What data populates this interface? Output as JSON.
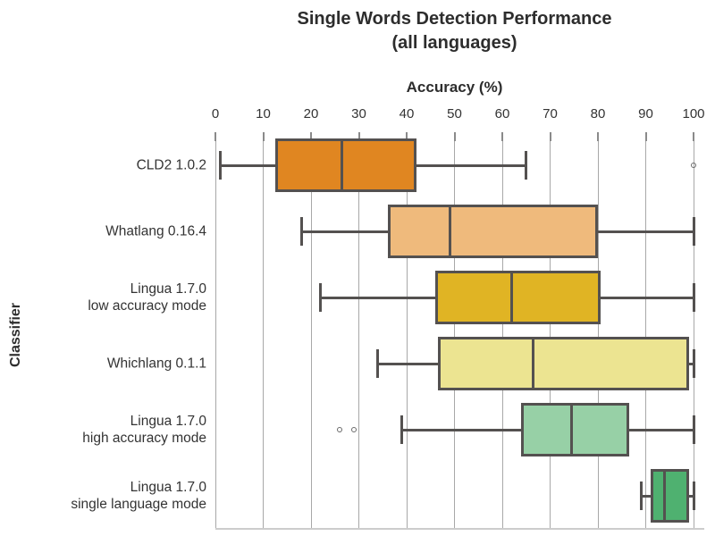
{
  "header": {
    "title_line1": "Single Words Detection Performance",
    "title_line2": "(all languages)"
  },
  "colors": {
    "box_border": "#545150",
    "gridline": "#a8a8a8",
    "text": "#2d2d2d"
  },
  "chart_data": {
    "type": "boxplot",
    "orientation": "horizontal",
    "title": "Single Words Detection Performance (all languages)",
    "xlabel": "Accuracy (%)",
    "ylabel": "Classifier",
    "xlim": [
      0,
      100
    ],
    "xticks": [
      0,
      10,
      20,
      30,
      40,
      50,
      60,
      70,
      80,
      90,
      100
    ],
    "grid": true,
    "x_axis_position": "top",
    "series": [
      {
        "name": "CLD2 1.0.2",
        "label_lines": [
          "CLD2 1.0.2"
        ],
        "color": "#E08621",
        "whisker_low": 1,
        "q1": 12.5,
        "median": 26.5,
        "q3": 42,
        "whisker_high": 65,
        "outliers": [
          100
        ]
      },
      {
        "name": "Whatlang 0.16.4",
        "label_lines": [
          "Whatlang 0.16.4"
        ],
        "color": "#EFBA7C",
        "whisker_low": 18,
        "q1": 36,
        "median": 49,
        "q3": 80,
        "whisker_high": 100,
        "outliers": []
      },
      {
        "name": "Lingua 1.7.0 low accuracy mode",
        "label_lines": [
          "Lingua 1.7.0",
          "low accuracy mode"
        ],
        "color": "#E0B424",
        "whisker_low": 22,
        "q1": 46,
        "median": 62,
        "q3": 80.5,
        "whisker_high": 100,
        "outliers": []
      },
      {
        "name": "Whichlang 0.1.1",
        "label_lines": [
          "Whichlang 0.1.1"
        ],
        "color": "#ECE491",
        "whisker_low": 34,
        "q1": 46.5,
        "median": 66.5,
        "q3": 99,
        "whisker_high": 100,
        "outliers": []
      },
      {
        "name": "Lingua 1.7.0 high accuracy mode",
        "label_lines": [
          "Lingua 1.7.0",
          "high accuracy mode"
        ],
        "color": "#97D0A6",
        "whisker_low": 39,
        "q1": 64,
        "median": 74.5,
        "q3": 86.5,
        "whisker_high": 100,
        "outliers": [
          26,
          29
        ]
      },
      {
        "name": "Lingua 1.7.0 single language mode",
        "label_lines": [
          "Lingua 1.7.0",
          "single language mode"
        ],
        "color": "#4FB170",
        "whisker_low": 89,
        "q1": 91,
        "median": 94,
        "q3": 99,
        "whisker_high": 100,
        "outliers": []
      }
    ]
  }
}
